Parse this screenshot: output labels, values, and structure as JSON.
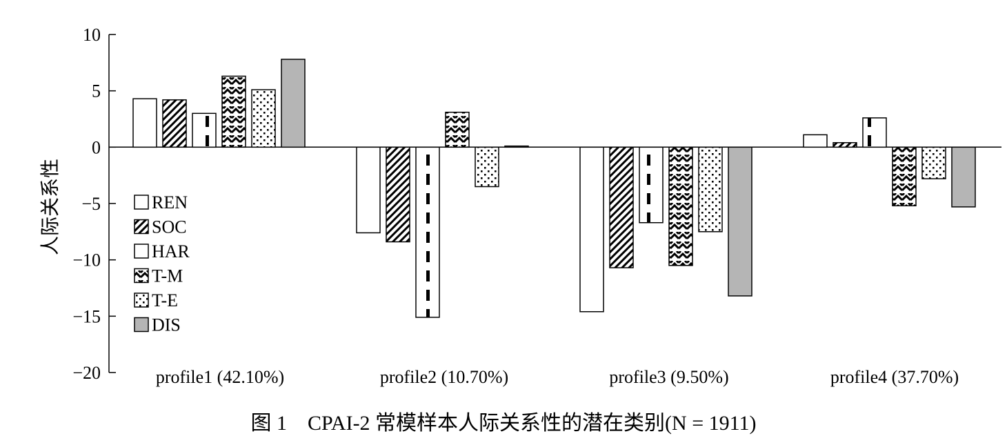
{
  "caption": "图 1    CPAI-2 常模样本人际关系性的潜在类别(N = 1911)",
  "chart_data": {
    "type": "bar",
    "title": "",
    "xlabel": "",
    "ylabel": "人际关系性",
    "ylim": [
      -20,
      10
    ],
    "yticks": [
      10,
      5,
      0,
      -5,
      -10,
      -15,
      -20
    ],
    "ytick_labels": [
      "10",
      "5",
      "0",
      "−5",
      "−10",
      "−15",
      "−20"
    ],
    "grid": false,
    "legend_position": "left",
    "categories": [
      "profile1 (42.10%)",
      "profile2 (10.70%)",
      "profile3 (9.50%)",
      "profile4 (37.70%)"
    ],
    "series": [
      {
        "name": "REN",
        "pattern": "plain",
        "values": [
          4.3,
          -7.6,
          -14.6,
          1.1
        ]
      },
      {
        "name": "SOC",
        "pattern": "diagonal",
        "values": [
          4.2,
          -8.4,
          -10.7,
          0.4
        ]
      },
      {
        "name": "HAR",
        "pattern": "dash",
        "values": [
          3.0,
          -15.1,
          -6.7,
          2.6
        ]
      },
      {
        "name": "T-M",
        "pattern": "wave",
        "values": [
          6.3,
          3.1,
          -10.5,
          -5.2
        ]
      },
      {
        "name": "T-E",
        "pattern": "dots",
        "values": [
          5.1,
          -3.5,
          -7.5,
          -2.8
        ]
      },
      {
        "name": "DIS",
        "pattern": "gray",
        "values": [
          7.8,
          0.1,
          -13.2,
          -5.3
        ]
      }
    ]
  },
  "colors": {
    "fill_gray": "#b5b5b5",
    "stroke": "#000000"
  }
}
